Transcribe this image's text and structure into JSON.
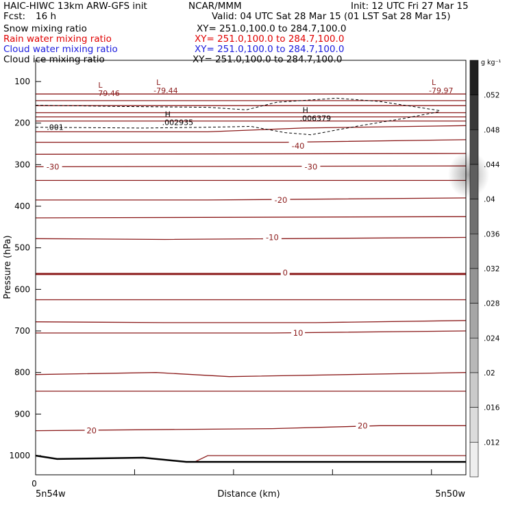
{
  "header": {
    "model": "HAIC-HIWC 13km ARW-GFS init",
    "center": "NCAR/MMM",
    "init": "Init: 12 UTC Fri 27 Mar 15",
    "fcst_label": "Fcst:",
    "fcst_value": "16 h",
    "valid": "Valid: 04 UTC Sat 28 Mar 15 (01 LST Sat 28 Mar 15)",
    "fields": [
      {
        "name": "Snow mixing ratio",
        "xy": "XY= 251.0,100.0 to 284.7,100.0",
        "color": "#000000"
      },
      {
        "name": "Rain water mixing ratio",
        "xy": "XY= 251.0,100.0 to 284.7,100.0",
        "color": "#e00000"
      },
      {
        "name": "Cloud water mixing ratio",
        "xy": "XY= 251.0,100.0 to 284.7,100.0",
        "color": "#1a1adc"
      },
      {
        "name": "Cloud ice mixing ratio",
        "xy": "XY= 251.0,100.0 to 284.7,100.0",
        "color": "#000000"
      }
    ]
  },
  "chart_data": {
    "type": "cross-section",
    "ylabel": "Pressure (hPa)",
    "xlabel": "Distance (km)",
    "yticks": [
      100,
      200,
      300,
      400,
      500,
      600,
      700,
      800,
      900,
      1000
    ],
    "ylim": [
      1050,
      50
    ],
    "x_start_label": "0",
    "x_left_label": "5n54w",
    "x_right_label": "5n50w",
    "x_minor_ticks": [
      0.0,
      0.23,
      0.46,
      0.69,
      0.92
    ],
    "temperature_contours": {
      "color": "#8b1a1a",
      "labels": [
        {
          "text": "-40",
          "x": 0.61,
          "p": 255
        },
        {
          "text": "-30",
          "x": 0.04,
          "p": 305
        },
        {
          "text": "-30",
          "x": 0.64,
          "p": 305
        },
        {
          "text": "-20",
          "x": 0.57,
          "p": 385
        },
        {
          "text": "-10",
          "x": 0.55,
          "p": 475
        },
        {
          "text": "0",
          "x": 0.58,
          "p": 560
        },
        {
          "text": "10",
          "x": 0.61,
          "p": 705
        },
        {
          "text": "20",
          "x": 0.13,
          "p": 940
        },
        {
          "text": "20",
          "x": 0.76,
          "p": 928
        }
      ],
      "lines": [
        {
          "points": [
            [
              0,
              130
            ],
            [
              1,
              130
            ]
          ]
        },
        {
          "points": [
            [
              0,
              146
            ],
            [
              1,
              146
            ]
          ]
        },
        {
          "points": [
            [
              0,
              158
            ],
            [
              1,
              158
            ]
          ]
        },
        {
          "points": [
            [
              0,
              175
            ],
            [
              1,
              175
            ]
          ]
        },
        {
          "points": [
            [
              0,
              185
            ],
            [
              1,
              185
            ]
          ]
        },
        {
          "points": [
            [
              0,
              195
            ],
            [
              1,
              195
            ]
          ]
        },
        {
          "points": [
            [
              0,
              221
            ],
            [
              0.4,
              221
            ],
            [
              0.62,
              212
            ],
            [
              1,
              206
            ]
          ]
        },
        {
          "points": [
            [
              0,
              246
            ],
            [
              0.58,
              246
            ],
            [
              1,
              240
            ]
          ]
        },
        {
          "points": [
            [
              0,
              275
            ],
            [
              1,
              273
            ]
          ]
        },
        {
          "points": [
            [
              0,
              305
            ],
            [
              1,
              303
            ]
          ]
        },
        {
          "points": [
            [
              0,
              338
            ],
            [
              1,
              338
            ]
          ]
        },
        {
          "points": [
            [
              0,
              385
            ],
            [
              0.4,
              385
            ],
            [
              0.65,
              383
            ],
            [
              1,
              380
            ]
          ]
        },
        {
          "points": [
            [
              0,
              428
            ],
            [
              1,
              425
            ]
          ]
        },
        {
          "points": [
            [
              0,
              478
            ],
            [
              0.3,
              480
            ],
            [
              1,
              475
            ]
          ]
        },
        {
          "points": [
            [
              0,
              563
            ],
            [
              1,
              563
            ]
          ],
          "bold": true
        },
        {
          "points": [
            [
              0,
              625
            ],
            [
              1,
              625
            ]
          ]
        },
        {
          "points": [
            [
              0,
              678
            ],
            [
              0.3,
              680
            ],
            [
              0.65,
              680
            ],
            [
              1,
              675
            ]
          ]
        },
        {
          "points": [
            [
              0,
              705
            ],
            [
              0.35,
              705
            ],
            [
              0.55,
              705
            ],
            [
              1,
              700
            ]
          ]
        },
        {
          "points": [
            [
              0,
              805
            ],
            [
              0.28,
              800
            ],
            [
              0.45,
              810
            ],
            [
              1,
              800
            ]
          ]
        },
        {
          "points": [
            [
              0,
              845
            ],
            [
              1,
              845
            ]
          ]
        },
        {
          "points": [
            [
              0,
              940
            ],
            [
              0.55,
              935
            ],
            [
              0.8,
              928
            ],
            [
              1,
              928
            ]
          ]
        },
        {
          "points": [
            [
              0.37,
              1015
            ],
            [
              0.4,
              1000
            ],
            [
              1,
              1000
            ]
          ]
        }
      ]
    },
    "ground": [
      [
        0,
        1000
      ],
      [
        0.05,
        1008
      ],
      [
        0.25,
        1005
      ],
      [
        0.35,
        1015
      ],
      [
        1,
        1015
      ]
    ],
    "snow_dashed": [
      {
        "points": [
          [
            0,
            157
          ],
          [
            0.2,
            160
          ],
          [
            0.4,
            162
          ],
          [
            0.49,
            168
          ],
          [
            0.56,
            150
          ],
          [
            0.7,
            140
          ],
          [
            0.8,
            148
          ],
          [
            0.94,
            170
          ]
        ]
      },
      {
        "points": [
          [
            0.0,
            210
          ],
          [
            0.25,
            212
          ],
          [
            0.4,
            210
          ],
          [
            0.5,
            208
          ],
          [
            0.58,
            223
          ],
          [
            0.64,
            228
          ],
          [
            0.75,
            207
          ],
          [
            0.86,
            188
          ],
          [
            0.94,
            172
          ]
        ]
      }
    ],
    "extrema_labels": [
      {
        "letter": "L",
        "value": "-79.46",
        "x": 0.155,
        "p": 115
      },
      {
        "letter": "L",
        "value": "-79.44",
        "x": 0.29,
        "p": 108
      },
      {
        "letter": "L",
        "value": "-79.97",
        "x": 0.93,
        "p": 108
      },
      {
        "letter": "H",
        "value": ".002935",
        "x": 0.31,
        "p": 185
      },
      {
        "letter": "H",
        "value": ".006379",
        "x": 0.63,
        "p": 175
      }
    ],
    "other_labels": [
      {
        "text": ".001",
        "x": 0.01,
        "p": 210
      }
    ],
    "colorbar": {
      "unit": "g kg⁻¹",
      "ticks": [
        ".052",
        ".048",
        ".044",
        ".04",
        ".036",
        ".032",
        ".028",
        ".024",
        ".02",
        ".016",
        ".012"
      ],
      "colors": [
        "#202020",
        "#383838",
        "#4c4c4c",
        "#5e5e5e",
        "#707070",
        "#828282",
        "#949494",
        "#a6a6a6",
        "#b8b8b8",
        "#cacaca",
        "#dcdcdc",
        "#eeeeee"
      ]
    }
  }
}
